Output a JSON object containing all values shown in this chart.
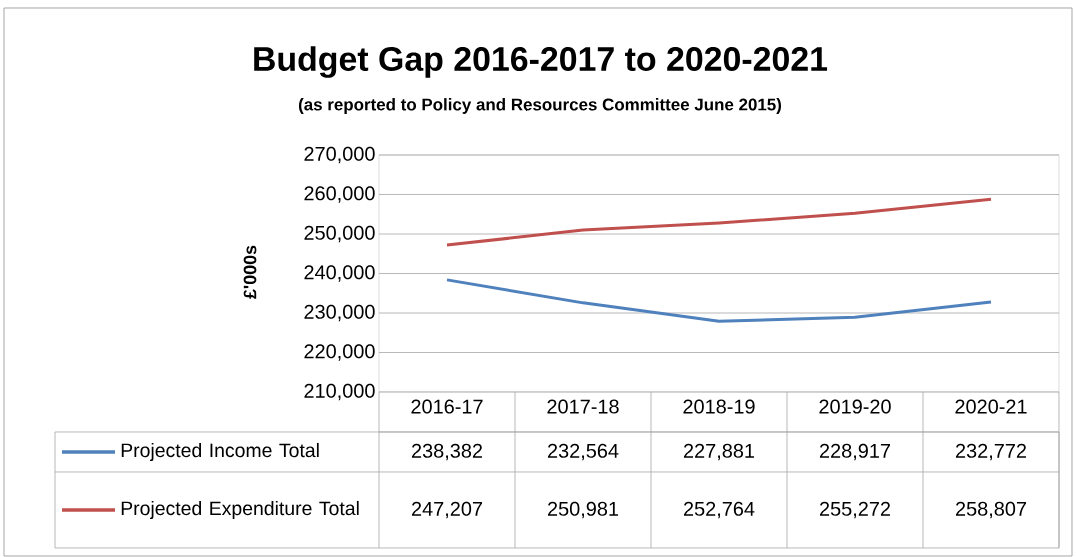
{
  "chart_data": {
    "type": "line",
    "title": "Budget Gap 2016-2017 to 2020-2021",
    "subtitle": "(as reported to Policy and Resources Committee June 2015)",
    "ylabel": "£'000s",
    "categories": [
      "2016-17",
      "2017-18",
      "2018-19",
      "2019-20",
      "2020-21"
    ],
    "series": [
      {
        "name": "Projected Income Total",
        "color": "#4f81bd",
        "values": [
          238382,
          232564,
          227881,
          228917,
          232772
        ],
        "value_labels": [
          "238,382",
          "232,564",
          "227,881",
          "228,917",
          "232,772"
        ]
      },
      {
        "name": "Projected Expenditure Total",
        "color": "#c0504d",
        "values": [
          247207,
          250981,
          252764,
          255272,
          258807
        ],
        "value_labels": [
          "247,207",
          "250,981",
          "252,764",
          "255,272",
          "258,807"
        ]
      }
    ],
    "ylim": [
      210000,
      270000
    ],
    "yticks": [
      {
        "value": 210000,
        "label": "210,000"
      },
      {
        "value": 220000,
        "label": "220,000"
      },
      {
        "value": 230000,
        "label": "230,000"
      },
      {
        "value": 240000,
        "label": "240,000"
      },
      {
        "value": 250000,
        "label": "250,000"
      },
      {
        "value": 260000,
        "label": "260,000"
      },
      {
        "value": 270000,
        "label": "270,000"
      }
    ],
    "grid": "y",
    "legend": "bottom"
  }
}
